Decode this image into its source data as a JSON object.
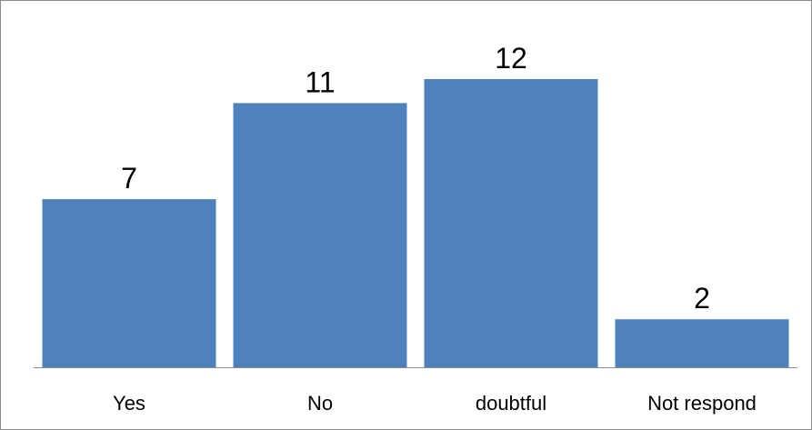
{
  "chart_data": {
    "type": "bar",
    "categories": [
      "Yes",
      "No",
      "doubtful",
      "Not respond"
    ],
    "values": [
      7,
      11,
      12,
      2
    ],
    "title": "",
    "xlabel": "",
    "ylabel": "",
    "ylim": [
      0,
      12
    ],
    "grid": false,
    "legend": "none",
    "data_labels": true,
    "bar_color": "#4f81bd"
  }
}
